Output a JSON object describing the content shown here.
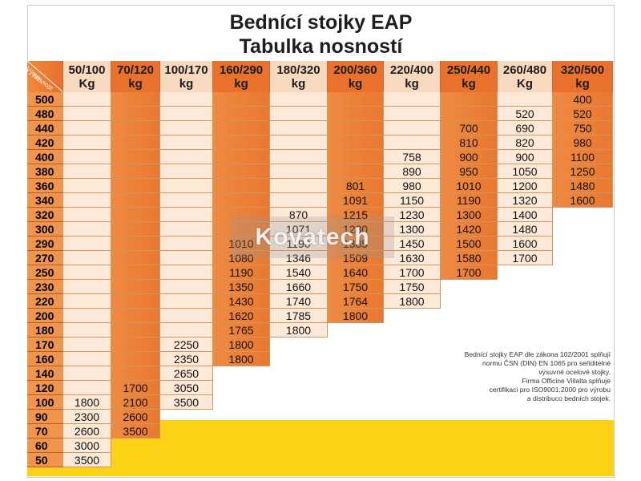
{
  "title": {
    "line1": "Bednící stojky EAP",
    "line2": "Tabulka nosností"
  },
  "corner_labels": {
    "top": "Výsuv",
    "bottom": "Nosnost"
  },
  "columns": [
    {
      "line1": "50/100",
      "line2": "Kg",
      "style": "light"
    },
    {
      "line1": "70/120",
      "line2": "kg",
      "style": "orange"
    },
    {
      "line1": "100/170",
      "line2": "kg",
      "style": "light"
    },
    {
      "line1": "160/290",
      "line2": "kg",
      "style": "orange"
    },
    {
      "line1": "180/320",
      "line2": "kg",
      "style": "light"
    },
    {
      "line1": "200/360",
      "line2": "kg",
      "style": "orange"
    },
    {
      "line1": "220/400",
      "line2": "kg",
      "style": "light"
    },
    {
      "line1": "250/440",
      "line2": "kg",
      "style": "orange"
    },
    {
      "line1": "260/480",
      "line2": "Kg",
      "style": "light"
    },
    {
      "line1": "320/500",
      "line2": "kg",
      "style": "orange"
    }
  ],
  "rows": [
    {
      "label": "500",
      "values": [
        "",
        "",
        "",
        "",
        "",
        "",
        "",
        "",
        "",
        "400"
      ]
    },
    {
      "label": "480",
      "values": [
        "",
        "",
        "",
        "",
        "",
        "",
        "",
        "",
        "520",
        "520"
      ]
    },
    {
      "label": "440",
      "values": [
        "",
        "",
        "",
        "",
        "",
        "",
        "",
        "700",
        "690",
        "750"
      ]
    },
    {
      "label": "420",
      "values": [
        "",
        "",
        "",
        "",
        "",
        "",
        "",
        "810",
        "820",
        "980"
      ]
    },
    {
      "label": "400",
      "values": [
        "",
        "",
        "",
        "",
        "",
        "",
        "758",
        "900",
        "900",
        "1100"
      ]
    },
    {
      "label": "380",
      "values": [
        "",
        "",
        "",
        "",
        "",
        "",
        "890",
        "950",
        "1050",
        "1250"
      ]
    },
    {
      "label": "360",
      "values": [
        "",
        "",
        "",
        "",
        "",
        "801",
        "980",
        "1010",
        "1200",
        "1480"
      ]
    },
    {
      "label": "340",
      "values": [
        "",
        "",
        "",
        "",
        "",
        "1091",
        "1150",
        "1190",
        "1320",
        "1600"
      ]
    },
    {
      "label": "320",
      "values": [
        "",
        "",
        "",
        "",
        "870",
        "1215",
        "1230",
        "1300",
        "1400",
        ""
      ]
    },
    {
      "label": "300",
      "values": [
        "",
        "",
        "",
        "",
        "1071",
        "1280",
        "1300",
        "1420",
        "1480",
        ""
      ]
    },
    {
      "label": "290",
      "values": [
        "",
        "",
        "",
        "1010",
        "1190",
        "1385",
        "1450",
        "1500",
        "1600",
        ""
      ]
    },
    {
      "label": "270",
      "values": [
        "",
        "",
        "",
        "1080",
        "1346",
        "1509",
        "1630",
        "1580",
        "1700",
        ""
      ]
    },
    {
      "label": "250",
      "values": [
        "",
        "",
        "",
        "1190",
        "1540",
        "1640",
        "1700",
        "1700",
        "",
        ""
      ]
    },
    {
      "label": "230",
      "values": [
        "",
        "",
        "",
        "1350",
        "1660",
        "1750",
        "1750",
        "",
        "",
        ""
      ]
    },
    {
      "label": "220",
      "values": [
        "",
        "",
        "",
        "1430",
        "1740",
        "1764",
        "1800",
        "",
        "",
        ""
      ]
    },
    {
      "label": "200",
      "values": [
        "",
        "",
        "",
        "1620",
        "1785",
        "1800",
        "",
        "",
        "",
        ""
      ]
    },
    {
      "label": "180",
      "values": [
        "",
        "",
        "",
        "1765",
        "1800",
        "",
        "",
        "",
        "",
        ""
      ]
    },
    {
      "label": "170",
      "values": [
        "",
        "",
        "2250",
        "1800",
        "",
        "",
        "",
        "",
        "",
        ""
      ]
    },
    {
      "label": "160",
      "values": [
        "",
        "",
        "2350",
        "1800",
        "",
        "",
        "",
        "",
        "",
        ""
      ]
    },
    {
      "label": "140",
      "values": [
        "",
        "",
        "2650",
        "",
        "",
        "",
        "",
        "",
        "",
        ""
      ]
    },
    {
      "label": "120",
      "values": [
        "",
        "1700",
        "3050",
        "",
        "",
        "",
        "",
        "",
        "",
        ""
      ]
    },
    {
      "label": "100",
      "values": [
        "1800",
        "2100",
        "3500",
        "",
        "",
        "",
        "",
        "",
        "",
        ""
      ]
    },
    {
      "label": "90",
      "values": [
        "2300",
        "2600",
        "",
        "",
        "",
        "",
        "",
        "",
        "",
        ""
      ]
    },
    {
      "label": "70",
      "values": [
        "2600",
        "3500",
        "",
        "",
        "",
        "",
        "",
        "",
        "",
        ""
      ]
    },
    {
      "label": "60",
      "values": [
        "3000",
        "",
        "",
        "",
        "",
        "",
        "",
        "",
        "",
        ""
      ]
    },
    {
      "label": "50",
      "values": [
        "3500",
        "",
        "",
        "",
        "",
        "",
        "",
        "",
        "",
        ""
      ]
    }
  ],
  "column_row_span": [
    [
      0,
      25
    ],
    [
      0,
      23
    ],
    [
      0,
      21
    ],
    [
      0,
      18
    ],
    [
      0,
      16
    ],
    [
      0,
      15
    ],
    [
      0,
      14
    ],
    [
      0,
      12
    ],
    [
      0,
      11
    ],
    [
      0,
      7
    ]
  ],
  "note_lines": [
    "Bednící stojky EAP dle zákona 102/2001 splňují",
    "normu ČSN (DIN) EN 1065 pro seřiditelné",
    "výsuvné ocelové stojky.",
    "Firma  Officine Villalta splňuje",
    "certifikaci pro ISO9001:2000 pro výrobu",
    "a distribuco bedních stojek."
  ],
  "watermark": "Kovatech",
  "colors": {
    "orange_header": "#e9712b",
    "orange_body": "#ef8a42",
    "light_header": "#f7d9bf",
    "light_body": "#fde9d8",
    "row_header": "#f1954d",
    "yellow_band": "#fdd116"
  }
}
